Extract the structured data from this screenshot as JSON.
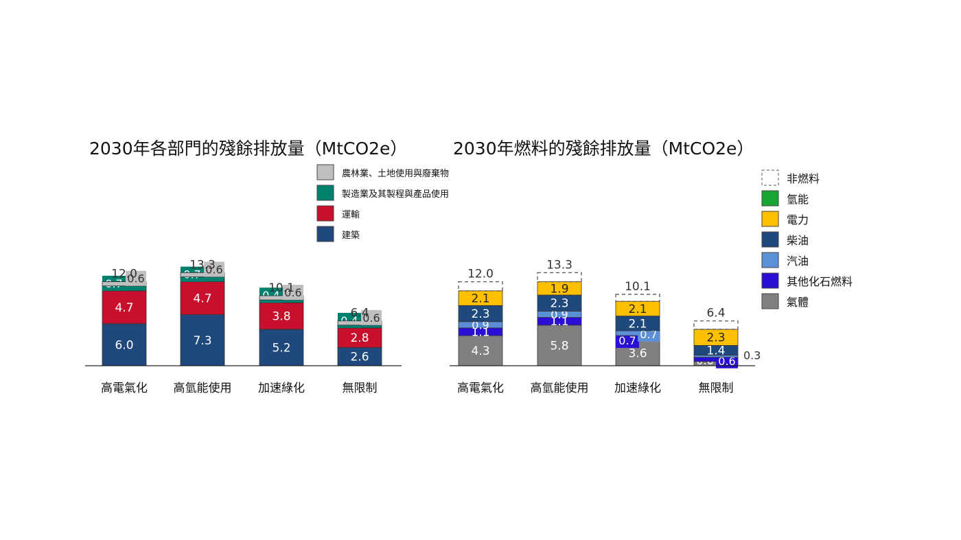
{
  "chart_data": [
    {
      "type": "bar",
      "stacked": true,
      "title": "2030年各部門的殘餘排放量（MtCO2e）",
      "categories": [
        "高電氣化",
        "高氫能使用",
        "加速綠化",
        "無限制"
      ],
      "totals": [
        "12.0",
        "13.3",
        "10.1",
        "6.4"
      ],
      "series": [
        {
          "name": "建築",
          "color": "#1f497d",
          "values": [
            6.0,
            7.3,
            5.2,
            2.6
          ],
          "labels": [
            "6.0",
            "7.3",
            "5.2",
            "2.6"
          ]
        },
        {
          "name": "運輸",
          "color": "#c8102e",
          "values": [
            4.7,
            4.7,
            3.8,
            2.8
          ],
          "labels": [
            "4.7",
            "4.7",
            "3.8",
            "2.8"
          ]
        },
        {
          "name": "製造業及其製程與產品使用",
          "color": "#00806e",
          "values": [
            0.7,
            0.7,
            0.4,
            0.4
          ],
          "labels": [
            "0.7",
            "0.7",
            "0.4",
            "0.4"
          ]
        },
        {
          "name": "農林業、土地使用與廢棄物",
          "color": "#bfbfbf",
          "values": [
            0.6,
            0.6,
            0.6,
            0.6
          ],
          "labels": [
            "0.6",
            "0.6",
            "0.6",
            "0.6"
          ]
        }
      ],
      "legend": [
        "農林業、土地使用與廢棄物",
        "製造業及其製程與產品使用",
        "運輸",
        "建築"
      ]
    },
    {
      "type": "bar",
      "stacked": true,
      "title": "2030年燃料的殘餘排放量（MtCO2e）",
      "categories": [
        "高電氣化",
        "高氫能使用",
        "加速綠化",
        "無限制"
      ],
      "totals": [
        "12.0",
        "13.3",
        "10.1",
        "6.4"
      ],
      "series": [
        {
          "name": "氣體",
          "color": "#808080",
          "values": [
            4.3,
            5.8,
            3.6,
            0.6
          ],
          "labels": [
            "4.3",
            "5.8",
            "3.6",
            "0.6"
          ]
        },
        {
          "name": "其他化石燃料",
          "color": "#2a0fd4",
          "values": [
            1.1,
            1.1,
            0.7,
            0.6
          ],
          "labels": [
            "1.1",
            "1.1",
            "0.7",
            "0.6"
          ]
        },
        {
          "name": "汽油",
          "color": "#5b8fd6",
          "values": [
            0.9,
            0.9,
            0.7,
            0.3
          ],
          "labels": [
            "0.9",
            "0.9",
            "0.7",
            "0.3"
          ]
        },
        {
          "name": "柴油",
          "color": "#1f497d",
          "values": [
            2.3,
            2.3,
            2.1,
            1.4
          ],
          "labels": [
            "2.3",
            "2.3",
            "2.1",
            "1.4"
          ]
        },
        {
          "name": "電力",
          "color": "#ffc000",
          "values": [
            2.1,
            1.9,
            2.1,
            2.3
          ],
          "labels": [
            "2.1",
            "1.9",
            "2.1",
            "2.3"
          ]
        },
        {
          "name": "氫能",
          "color": "#17a535",
          "values": [
            0,
            0,
            0,
            0
          ],
          "labels": [
            "",
            "",
            "",
            ""
          ]
        },
        {
          "name": "非燃料",
          "color": "none",
          "dashed": true,
          "values": [
            1.3,
            1.3,
            1.0,
            1.2
          ],
          "labels": [
            "",
            "",
            "",
            ""
          ]
        }
      ],
      "legend": [
        "非燃料",
        "氫能",
        "電力",
        "柴油",
        "汽油",
        "其他化石燃料",
        "氣體"
      ]
    }
  ]
}
